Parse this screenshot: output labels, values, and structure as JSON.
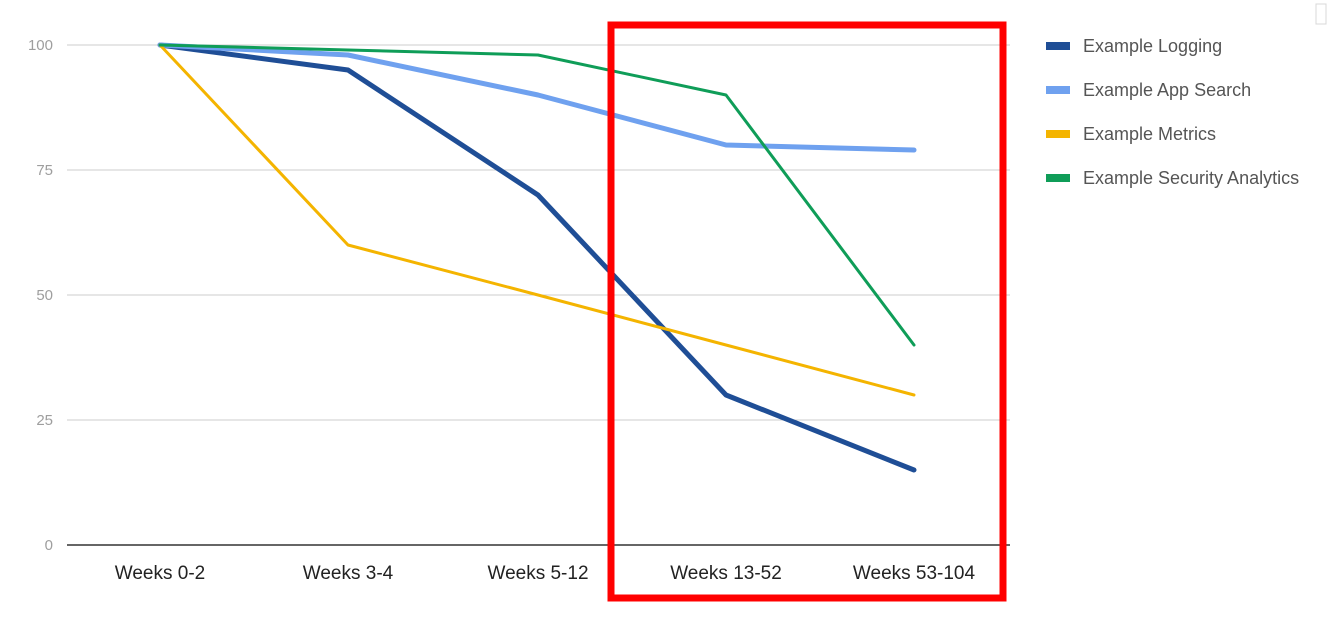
{
  "chart_data": {
    "type": "line",
    "title": "",
    "xlabel": "",
    "ylabel": "",
    "categories": [
      "Weeks 0-2",
      "Weeks 3-4",
      "Weeks 5-12",
      "Weeks 13-52",
      "Weeks 53-104"
    ],
    "ylim": [
      0,
      100
    ],
    "y_ticks": [
      "0",
      "25",
      "50",
      "75",
      "100"
    ],
    "grid": true,
    "legend_position": "right",
    "series": [
      {
        "name": "Example Logging",
        "color": "#1f4e96",
        "values": [
          100,
          95,
          70,
          30,
          15
        ]
      },
      {
        "name": "Example App Search",
        "color": "#6fa1ef",
        "values": [
          100,
          98,
          90,
          80,
          79
        ]
      },
      {
        "name": "Example Metrics",
        "color": "#f4b400",
        "values": [
          100,
          60,
          50,
          40,
          30
        ]
      },
      {
        "name": "Example Security Analytics",
        "color": "#0f9d58",
        "values": [
          100,
          99,
          98,
          90,
          40
        ]
      }
    ],
    "annotations": [
      {
        "type": "highlight-box",
        "color": "#ff0000",
        "spans_categories": [
          "Weeks 13-52",
          "Weeks 53-104"
        ]
      }
    ]
  }
}
